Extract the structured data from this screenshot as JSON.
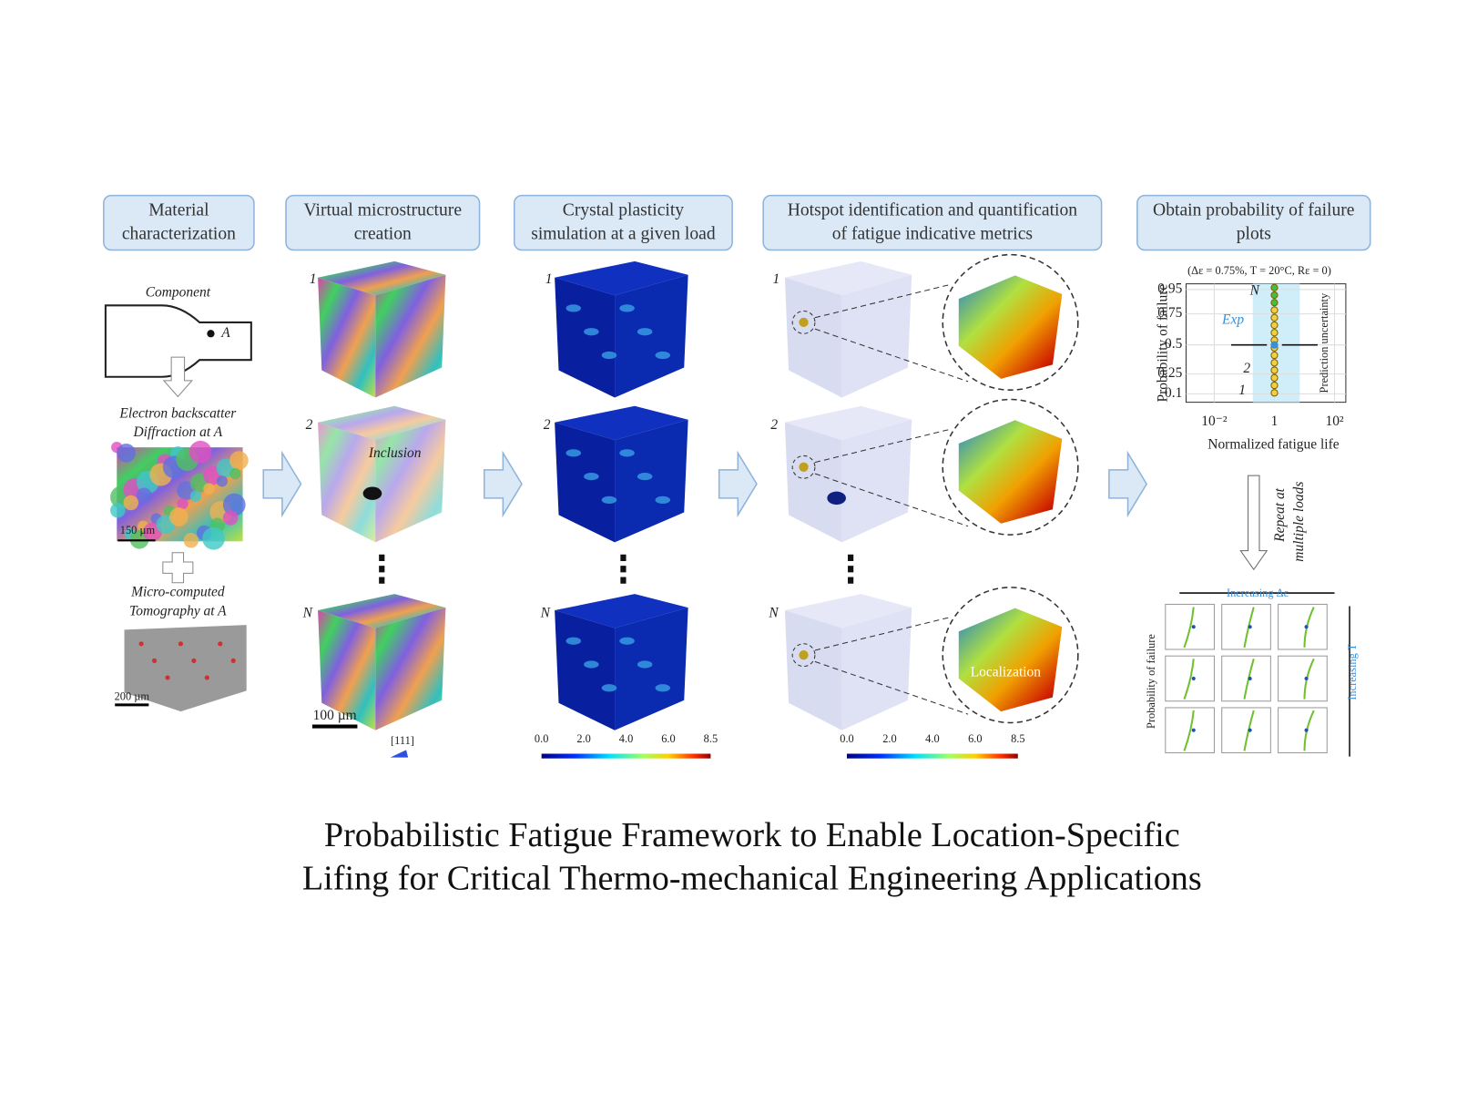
{
  "steps": [
    {
      "lines": [
        "Material",
        "characterization"
      ]
    },
    {
      "lines": [
        "Virtual microstructure",
        "creation"
      ]
    },
    {
      "lines": [
        "Crystal plasticity",
        "simulation at a given load"
      ]
    },
    {
      "lines": [
        "Hotspot identification and quantification",
        "of fatigue indicative metrics"
      ]
    },
    {
      "lines": [
        "Obtain probability of failure",
        "plots"
      ]
    }
  ],
  "material": {
    "component": "Component",
    "point": "A",
    "ebsd": [
      "Electron backscatter",
      "Diffraction at A"
    ],
    "ebsd_scale": "150 µm",
    "ct": [
      "Micro-computed",
      "Tomography at A"
    ],
    "ct_scale": "200 µm"
  },
  "microstructure": {
    "labels": [
      "1",
      "2",
      "N"
    ],
    "inclusion": "Inclusion",
    "scale": "100 µm",
    "orientation": "[111]"
  },
  "simulation": {
    "labels": [
      "1",
      "2",
      "N"
    ],
    "colorbar": [
      "0.0",
      "2.0",
      "4.0",
      "6.0",
      "8.5"
    ]
  },
  "hotspot": {
    "labels": [
      "1",
      "2",
      "N"
    ],
    "localization": "Localization",
    "colorbar": [
      "0.0",
      "2.0",
      "4.0",
      "6.0",
      "8.5"
    ]
  },
  "probability": {
    "conditions": "(Δε = 0.75%, T = 20°C, Rε = 0)",
    "ylabel": "Probability of failure",
    "yticks": [
      "0.95",
      "0.75",
      "0.5",
      "0.25",
      "0.1"
    ],
    "xticks": [
      "10⁻²",
      "1",
      "10²"
    ],
    "xlabel": "Normalized fatigue life",
    "n_label": "N",
    "exp": "Exp",
    "markers": [
      "2",
      "1"
    ],
    "uncertainty": "Prediction uncertainty",
    "repeat": [
      "Repeat at",
      "multiple loads"
    ],
    "increasing_strain": "Increasing Δε",
    "increasing_t": "Increasing T",
    "grid_ylabel": "Probability of failure"
  },
  "caption": [
    "Probabilistic Fatigue Framework to Enable Location-Specific",
    "Lifing for Critical Thermo-mechanical Engineering Applications"
  ]
}
